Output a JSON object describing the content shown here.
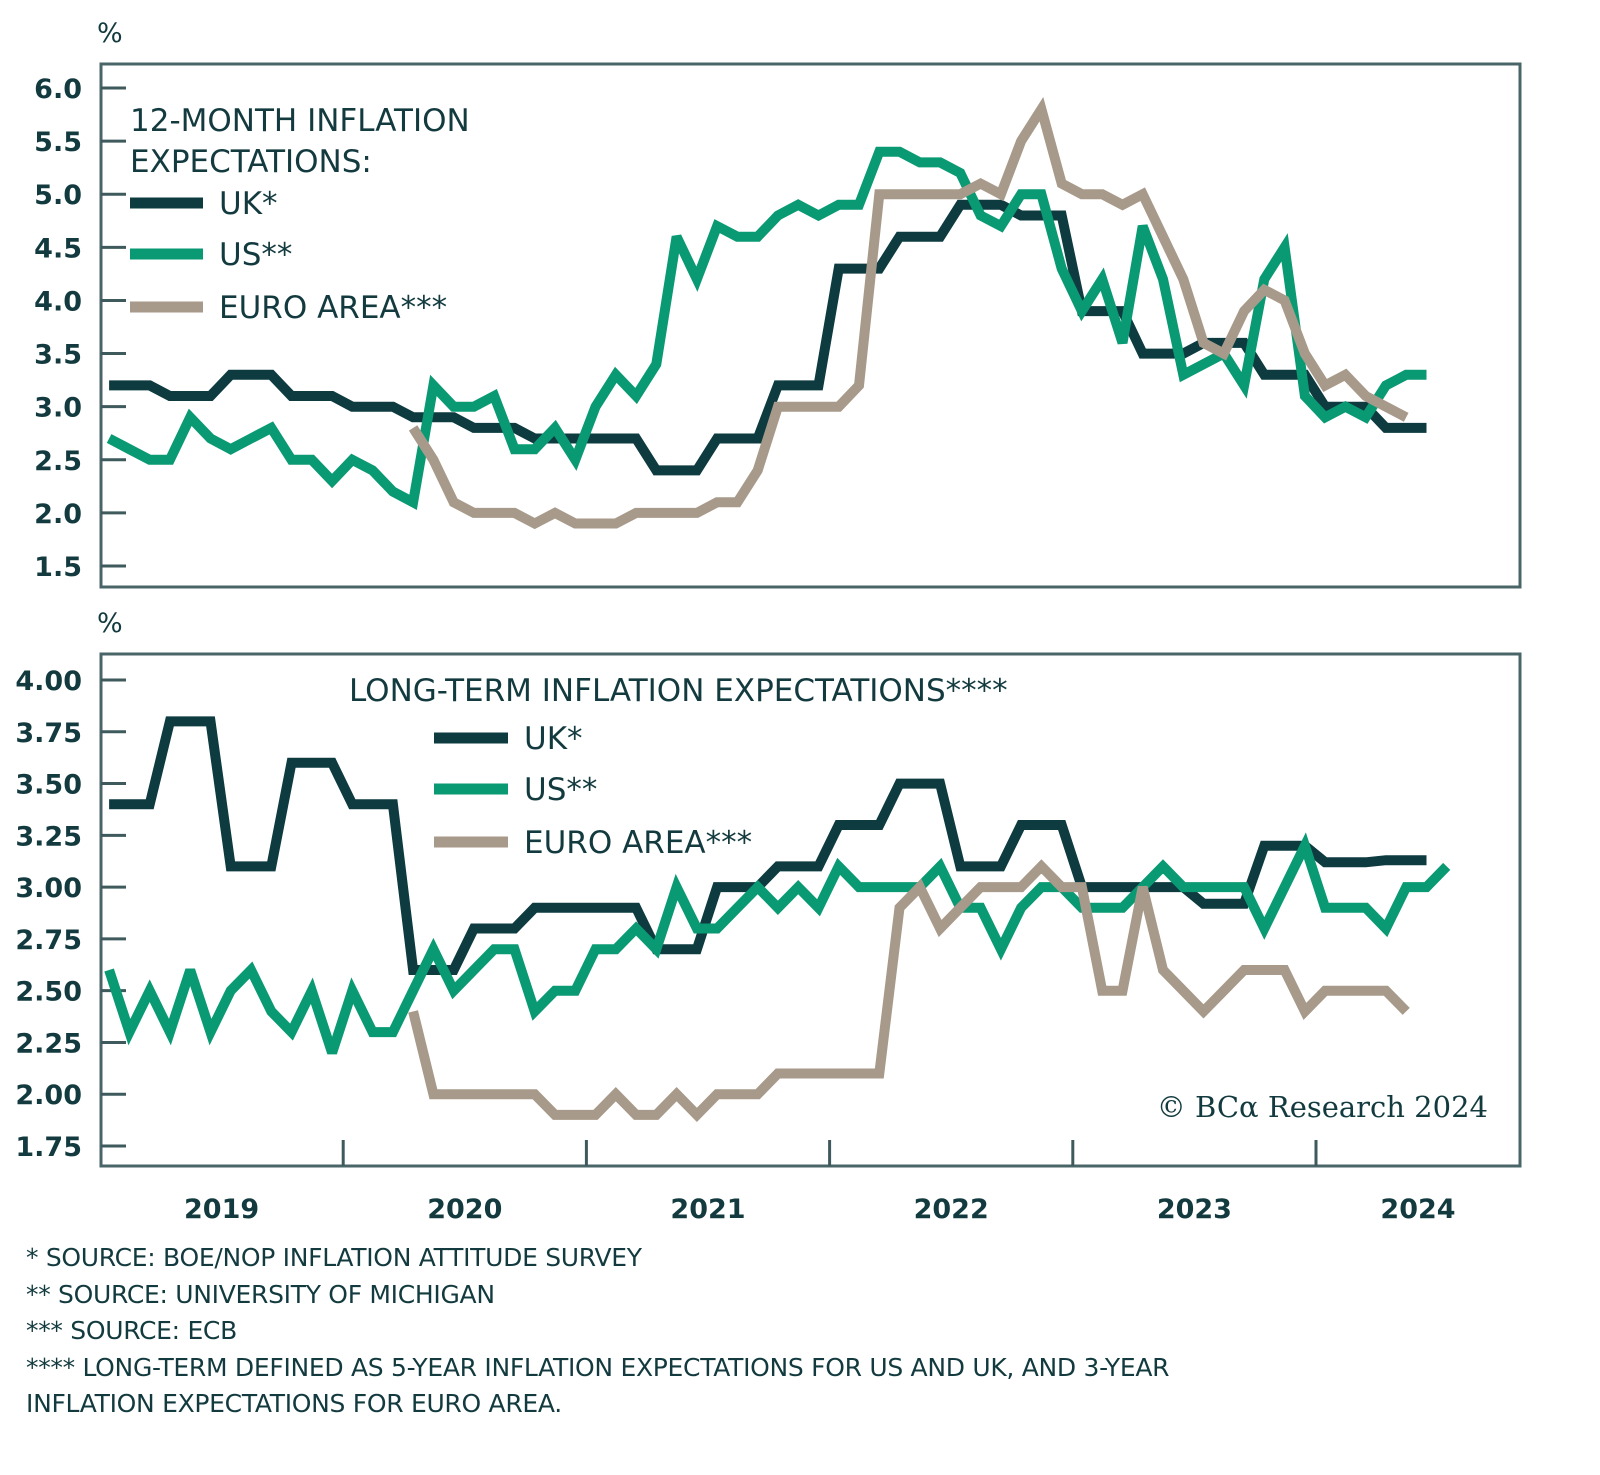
{
  "chart_data": [
    {
      "type": "line",
      "title": "12-MONTH INFLATION EXPECTATIONS:",
      "ylabel": "%",
      "xlabel": "",
      "ylim": [
        1.3,
        6.2
      ],
      "yticks": [
        6.0,
        5.5,
        5.0,
        4.5,
        4.0,
        3.5,
        3.0,
        2.5,
        2.0,
        1.5
      ],
      "ytick_labels": [
        "6.0",
        "5.5",
        "5.0",
        "4.5",
        "4.0",
        "3.5",
        "3.0",
        "2.5",
        "2.0",
        "1.5"
      ],
      "x_start": "2019-01",
      "x_frequency": "monthly",
      "grid": false,
      "legend_position": "top-left",
      "series": [
        {
          "name": "UK*",
          "color": "#0d3b40",
          "start_month_index": 0,
          "values": [
            3.2,
            3.2,
            3.2,
            3.1,
            3.1,
            3.1,
            3.3,
            3.3,
            3.3,
            3.1,
            3.1,
            3.1,
            3.0,
            3.0,
            3.0,
            2.9,
            2.9,
            2.9,
            2.8,
            2.8,
            2.8,
            2.7,
            2.7,
            2.7,
            2.7,
            2.7,
            2.7,
            2.4,
            2.4,
            2.4,
            2.7,
            2.7,
            2.7,
            3.2,
            3.2,
            3.2,
            4.3,
            4.3,
            4.3,
            4.6,
            4.6,
            4.6,
            4.9,
            4.9,
            4.9,
            4.8,
            4.8,
            4.8,
            3.9,
            3.9,
            3.9,
            3.5,
            3.5,
            3.5,
            3.6,
            3.6,
            3.6,
            3.3,
            3.3,
            3.3,
            3.0,
            3.0,
            3.0,
            2.8,
            2.8,
            2.8
          ]
        },
        {
          "name": "US**",
          "color": "#0a9a73",
          "start_month_index": 0,
          "values": [
            2.7,
            2.6,
            2.5,
            2.5,
            2.9,
            2.7,
            2.6,
            2.7,
            2.8,
            2.5,
            2.5,
            2.3,
            2.5,
            2.4,
            2.2,
            2.1,
            3.2,
            3.0,
            3.0,
            3.1,
            2.6,
            2.6,
            2.8,
            2.5,
            3.0,
            3.3,
            3.1,
            3.4,
            4.6,
            4.2,
            4.7,
            4.6,
            4.6,
            4.8,
            4.9,
            4.8,
            4.9,
            4.9,
            5.4,
            5.4,
            5.3,
            5.3,
            5.2,
            4.8,
            4.7,
            5.0,
            5.0,
            4.3,
            3.9,
            4.2,
            3.6,
            4.7,
            4.2,
            3.3,
            3.4,
            3.5,
            3.2,
            4.2,
            4.5,
            3.1,
            2.9,
            3.0,
            2.9,
            3.2,
            3.3,
            3.3
          ]
        },
        {
          "name": "EURO AREA***",
          "color": "#a89a8a",
          "start_month_index": 15,
          "values": [
            2.8,
            2.5,
            2.1,
            2.0,
            2.0,
            2.0,
            1.9,
            2.0,
            1.9,
            1.9,
            1.9,
            2.0,
            2.0,
            2.0,
            2.0,
            2.1,
            2.1,
            2.4,
            3.0,
            3.0,
            3.0,
            3.0,
            3.2,
            5.0,
            5.0,
            5.0,
            5.0,
            5.0,
            5.1,
            5.0,
            5.5,
            5.8,
            5.1,
            5.0,
            5.0,
            4.9,
            5.0,
            4.6,
            4.2,
            3.6,
            3.5,
            3.9,
            4.1,
            4.0,
            3.5,
            3.2,
            3.3,
            3.1,
            3.0,
            2.9
          ]
        }
      ]
    },
    {
      "type": "line",
      "title": "LONG-TERM INFLATION EXPECTATIONS****",
      "ylabel": "%",
      "xlabel": "",
      "ylim": [
        1.64,
        4.12
      ],
      "yticks": [
        4.0,
        3.75,
        3.5,
        3.25,
        3.0,
        2.75,
        2.5,
        2.25,
        2.0,
        1.75
      ],
      "ytick_labels": [
        "4.00",
        "3.75",
        "3.50",
        "3.25",
        "3.00",
        "2.75",
        "2.50",
        "2.25",
        "2.00",
        "1.75"
      ],
      "x_start": "2019-01",
      "x_frequency": "monthly",
      "xtick_labels": [
        "2019",
        "2020",
        "2021",
        "2022",
        "2023",
        "2024"
      ],
      "grid": false,
      "legend_position": "top-center",
      "annotation": "© BCα Research 2024",
      "series": [
        {
          "name": "UK*",
          "color": "#0d3b40",
          "start_month_index": 0,
          "values": [
            3.4,
            3.4,
            3.4,
            3.8,
            3.8,
            3.8,
            3.1,
            3.1,
            3.1,
            3.6,
            3.6,
            3.6,
            3.4,
            3.4,
            3.4,
            2.6,
            2.6,
            2.6,
            2.8,
            2.8,
            2.8,
            2.9,
            2.9,
            2.9,
            2.9,
            2.9,
            2.9,
            2.7,
            2.7,
            2.7,
            3.0,
            3.0,
            3.0,
            3.1,
            3.1,
            3.1,
            3.3,
            3.3,
            3.3,
            3.5,
            3.5,
            3.5,
            3.1,
            3.1,
            3.1,
            3.3,
            3.3,
            3.3,
            3.0,
            3.0,
            3.0,
            3.0,
            3.0,
            3.0,
            2.92,
            2.92,
            2.92,
            3.2,
            3.2,
            3.2,
            3.12,
            3.12,
            3.12,
            3.13,
            3.13,
            3.13
          ]
        },
        {
          "name": "US**",
          "color": "#0a9a73",
          "start_month_index": 0,
          "values": [
            2.6,
            2.3,
            2.5,
            2.3,
            2.6,
            2.3,
            2.5,
            2.6,
            2.4,
            2.3,
            2.5,
            2.2,
            2.5,
            2.3,
            2.3,
            2.5,
            2.7,
            2.5,
            2.6,
            2.7,
            2.7,
            2.4,
            2.5,
            2.5,
            2.7,
            2.7,
            2.8,
            2.7,
            3.0,
            2.8,
            2.8,
            2.9,
            3.0,
            2.9,
            3.0,
            2.9,
            3.1,
            3.0,
            3.0,
            3.0,
            3.0,
            3.1,
            2.9,
            2.9,
            2.7,
            2.9,
            3.0,
            3.0,
            2.9,
            2.9,
            2.9,
            3.0,
            3.1,
            3.0,
            3.0,
            3.0,
            3.0,
            2.8,
            3.0,
            3.2,
            2.9,
            2.9,
            2.9,
            2.8,
            3.0,
            3.0,
            3.1
          ]
        },
        {
          "name": "EURO AREA***",
          "color": "#a89a8a",
          "start_month_index": 15,
          "values": [
            2.4,
            2.0,
            2.0,
            2.0,
            2.0,
            2.0,
            2.0,
            1.9,
            1.9,
            1.9,
            2.0,
            1.9,
            1.9,
            2.0,
            1.9,
            2.0,
            2.0,
            2.0,
            2.1,
            2.1,
            2.1,
            2.1,
            2.1,
            2.1,
            2.9,
            3.0,
            2.8,
            2.9,
            3.0,
            3.0,
            3.0,
            3.1,
            3.0,
            3.0,
            2.5,
            2.5,
            3.0,
            2.6,
            2.5,
            2.4,
            2.5,
            2.6,
            2.6,
            2.6,
            2.4,
            2.5,
            2.5,
            2.5,
            2.5,
            2.4
          ]
        }
      ]
    }
  ],
  "top_panel": {
    "unit": "%",
    "legend_title_line1": "12-MONTH INFLATION",
    "legend_title_line2": "EXPECTATIONS:",
    "legend": [
      "UK*",
      "US**",
      "EURO AREA***"
    ]
  },
  "bottom_panel": {
    "unit": "%",
    "legend_title": "LONG-TERM INFLATION EXPECTATIONS****",
    "legend": [
      "UK*",
      "US**",
      "EURO AREA***"
    ],
    "credit": "© BCα Research 2024"
  },
  "footnotes": [
    "* SOURCE: BOE/NOP INFLATION ATTITUDE SURVEY",
    "** SOURCE: UNIVERSITY OF MICHIGAN",
    "*** SOURCE: ECB",
    "**** LONG-TERM DEFINED AS 5-YEAR INFLATION EXPECTATIONS FOR US AND UK, AND 3-YEAR",
    "INFLATION EXPECTATIONS FOR EURO AREA."
  ]
}
